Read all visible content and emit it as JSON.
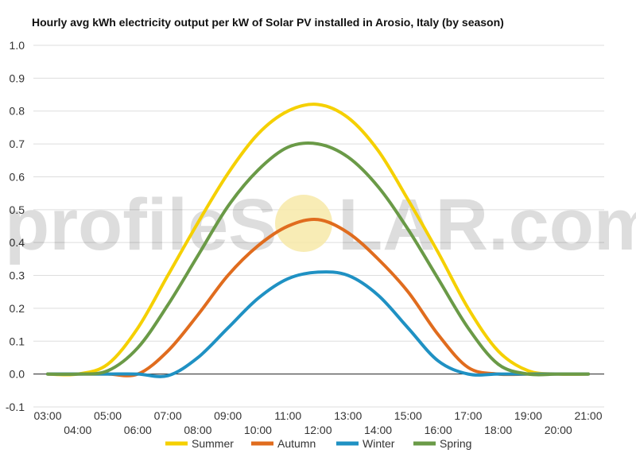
{
  "chart_data": {
    "type": "line",
    "title": "Hourly avg kWh electricity output per kW of Solar PV installed in Arosio, Italy (by season)",
    "xlabel": "",
    "ylabel": "",
    "ylim": [
      -0.1,
      1.0
    ],
    "yticks": [
      "-0.1",
      "0.0",
      "0.1",
      "0.2",
      "0.3",
      "0.4",
      "0.5",
      "0.6",
      "0.7",
      "0.8",
      "0.9",
      "1.0"
    ],
    "x": [
      "03:00",
      "04:00",
      "05:00",
      "06:00",
      "07:00",
      "08:00",
      "09:00",
      "10:00",
      "11:00",
      "12:00",
      "13:00",
      "14:00",
      "15:00",
      "16:00",
      "17:00",
      "18:00",
      "19:00",
      "20:00",
      "21:00"
    ],
    "grid": true,
    "legend_position": "bottom",
    "series": [
      {
        "name": "Summer",
        "color": "#f5d000",
        "values": [
          0.0,
          0.0,
          0.03,
          0.14,
          0.3,
          0.46,
          0.61,
          0.73,
          0.8,
          0.82,
          0.78,
          0.68,
          0.53,
          0.37,
          0.2,
          0.07,
          0.01,
          0.0,
          0.0
        ]
      },
      {
        "name": "Autumn",
        "color": "#e06c1e",
        "values": [
          0.0,
          0.0,
          0.0,
          0.0,
          0.07,
          0.18,
          0.3,
          0.39,
          0.45,
          0.47,
          0.43,
          0.35,
          0.25,
          0.12,
          0.02,
          0.0,
          0.0,
          0.0,
          0.0
        ]
      },
      {
        "name": "Winter",
        "color": "#1f91c3",
        "values": [
          0.0,
          0.0,
          0.0,
          0.0,
          -0.005,
          0.05,
          0.14,
          0.23,
          0.29,
          0.31,
          0.3,
          0.24,
          0.14,
          0.04,
          0.0,
          0.0,
          0.0,
          0.0,
          0.0
        ]
      },
      {
        "name": "Spring",
        "color": "#6a9a47",
        "values": [
          0.0,
          0.0,
          0.01,
          0.08,
          0.21,
          0.36,
          0.51,
          0.62,
          0.69,
          0.7,
          0.66,
          0.57,
          0.44,
          0.29,
          0.14,
          0.03,
          0.0,
          0.0,
          0.0
        ]
      }
    ]
  },
  "watermark": {
    "text_left": "profileS",
    "text_right": "LAR.com",
    "sun_color": "#f7e9a8"
  }
}
